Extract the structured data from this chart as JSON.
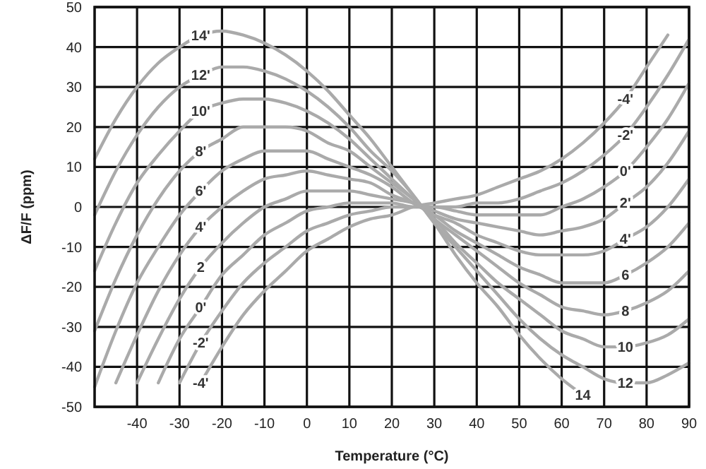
{
  "chart_data": {
    "type": "line",
    "xlabel": "Temperature (°C)",
    "ylabel": "ΔF/F (ppm)",
    "x": [
      -50,
      -45,
      -40,
      -35,
      -30,
      -25,
      -20,
      -15,
      -10,
      -5,
      0,
      5,
      10,
      15,
      20,
      25,
      30,
      35,
      40,
      45,
      50,
      55,
      60,
      65,
      70,
      75,
      80,
      85,
      90
    ],
    "xlim": [
      -50,
      90
    ],
    "xticks": [
      -40,
      -30,
      -20,
      -10,
      0,
      10,
      20,
      30,
      40,
      50,
      60,
      70,
      80,
      90
    ],
    "ylim": [
      -50,
      50
    ],
    "yticks": [
      -50,
      -40,
      -30,
      -20,
      -10,
      0,
      10,
      20,
      30,
      40,
      50
    ],
    "grid": true,
    "marker": "none",
    "line_style": "solid",
    "series": [
      {
        "color": "#aaaaaa",
        "values": [
          12,
          22,
          30,
          36,
          40,
          43,
          44,
          43,
          41,
          38,
          34,
          29,
          23,
          17,
          10,
          3,
          -4,
          -12,
          -19,
          -25,
          -32,
          -38,
          -43,
          -47,
          null,
          null,
          null,
          null,
          null
        ]
      },
      {
        "color": "#aaaaaa",
        "values": [
          -2,
          9,
          18,
          25,
          30,
          33,
          35,
          35,
          34,
          32,
          29,
          25,
          20,
          14,
          9,
          3,
          -4,
          -10,
          -16,
          -22,
          -28,
          -33,
          -37,
          -40,
          -43,
          -44,
          -44,
          -42,
          -39
        ]
      },
      {
        "color": "#aaaaaa",
        "values": [
          -16,
          -4,
          6,
          13,
          19,
          24,
          26,
          27,
          27,
          26,
          24,
          21,
          17,
          12,
          7,
          2,
          -3,
          -9,
          -14,
          -19,
          -23,
          -27,
          -31,
          -33,
          -35,
          -35,
          -34,
          -32,
          -28
        ]
      },
      {
        "color": "#aaaaaa",
        "values": [
          -31,
          -18,
          -7,
          2,
          9,
          14,
          17,
          20,
          20,
          20,
          19,
          16,
          14,
          10,
          6,
          2,
          -3,
          -7,
          -11,
          -15,
          -19,
          -22,
          -25,
          -26,
          -27,
          -26,
          -24,
          -21,
          -16
        ]
      },
      {
        "color": "#aaaaaa",
        "values": [
          -45,
          -31,
          -19,
          -10,
          -2,
          4,
          9,
          12,
          14,
          14,
          14,
          12,
          10,
          8,
          5,
          1,
          -2,
          -6,
          -9,
          -12,
          -15,
          -17,
          -19,
          -19,
          -19,
          -17,
          -14,
          -10,
          -4
        ]
      },
      {
        "color": "#aaaaaa",
        "values": [
          null,
          -44,
          -32,
          -21,
          -12,
          -5,
          0,
          4,
          7,
          8,
          9,
          8,
          7,
          6,
          3,
          1,
          -2,
          -4,
          -7,
          -9,
          -11,
          -12,
          -12,
          -12,
          -11,
          -8,
          -5,
          0,
          7
        ]
      },
      {
        "color": "#aaaaaa",
        "values": [
          null,
          null,
          -44,
          -33,
          -23,
          -15,
          -9,
          -4,
          0,
          2,
          4,
          4,
          4,
          3,
          2,
          1,
          -1,
          -3,
          -4,
          -5,
          -6,
          -7,
          -6,
          -5,
          -3,
          1,
          5,
          11,
          19
        ]
      },
      {
        "color": "#aaaaaa",
        "values": [
          null,
          null,
          null,
          -44,
          -33,
          -25,
          -17,
          -12,
          -7,
          -4,
          -1,
          0,
          1,
          1,
          1,
          0,
          0,
          -1,
          -2,
          -2,
          -2,
          -2,
          0,
          2,
          5,
          9,
          15,
          22,
          31
        ]
      },
      {
        "color": "#aaaaaa",
        "values": [
          null,
          null,
          null,
          null,
          -44,
          -34,
          -26,
          -19,
          -14,
          -10,
          -6,
          -4,
          -2,
          -1,
          0,
          0,
          0,
          0,
          1,
          1,
          2,
          4,
          6,
          9,
          13,
          18,
          25,
          33,
          42
        ]
      },
      {
        "color": "#aaaaaa",
        "values": [
          null,
          null,
          null,
          null,
          null,
          -44,
          -35,
          -27,
          -21,
          -16,
          -11,
          -8,
          -5,
          -3,
          -2,
          0,
          1,
          2,
          3,
          5,
          7,
          9,
          12,
          16,
          21,
          27,
          35,
          43,
          null
        ]
      }
    ],
    "annotations": [
      {
        "text": "14'",
        "x": -25,
        "y": 43
      },
      {
        "text": "12'",
        "x": -25,
        "y": 33
      },
      {
        "text": "10'",
        "x": -25,
        "y": 24
      },
      {
        "text": "8'",
        "x": -25,
        "y": 14
      },
      {
        "text": "6'",
        "x": -25,
        "y": 4
      },
      {
        "text": "4'",
        "x": -25,
        "y": -5
      },
      {
        "text": "2",
        "x": -25,
        "y": -15
      },
      {
        "text": "0'",
        "x": -25,
        "y": -25
      },
      {
        "text": "-2'",
        "x": -25,
        "y": -34
      },
      {
        "text": "-4'",
        "x": -25,
        "y": -44
      },
      {
        "text": "-4'",
        "x": 75,
        "y": 27
      },
      {
        "text": "-2'",
        "x": 75,
        "y": 18
      },
      {
        "text": "0'",
        "x": 75,
        "y": 9
      },
      {
        "text": "2'",
        "x": 75,
        "y": 1
      },
      {
        "text": "4'",
        "x": 75,
        "y": -8
      },
      {
        "text": "6",
        "x": 75,
        "y": -17
      },
      {
        "text": "8",
        "x": 75,
        "y": -26
      },
      {
        "text": "10",
        "x": 75,
        "y": -35
      },
      {
        "text": "12",
        "x": 75,
        "y": -44
      },
      {
        "text": "14",
        "x": 65,
        "y": -47
      }
    ]
  }
}
